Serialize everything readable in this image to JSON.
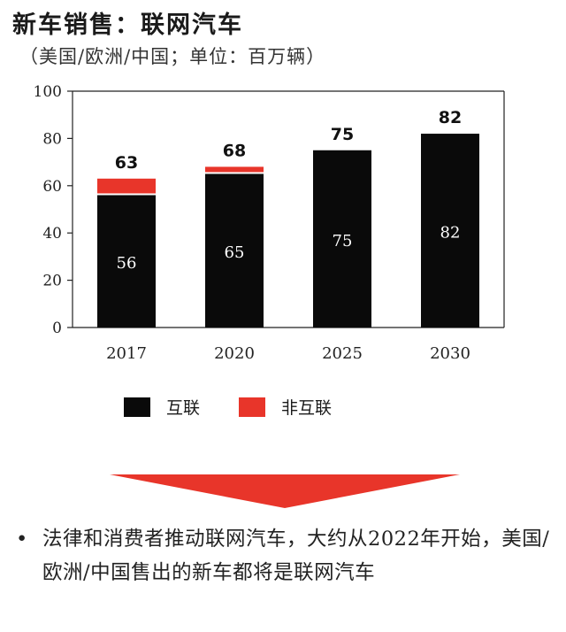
{
  "title": "新车销售：联网汽车",
  "subtitle": "（美国/欧洲/中国；单位：百万辆）",
  "colors": {
    "connected": "#0a0a0a",
    "non_connected": "#e8352a",
    "arrow": "#e8352a"
  },
  "chart_data": {
    "type": "bar",
    "stacked": true,
    "categories": [
      "2017",
      "2020",
      "2025",
      "2030"
    ],
    "series": [
      {
        "name": "互联",
        "values": [
          56,
          65,
          75,
          82
        ]
      },
      {
        "name": "非互联",
        "values": [
          7,
          3,
          0,
          0
        ]
      }
    ],
    "totals": [
      63,
      68,
      75,
      82
    ],
    "inner_labels": [
      "56",
      "65",
      "75",
      "82"
    ],
    "yticks": [
      "0",
      "20",
      "40",
      "60",
      "80",
      "100"
    ],
    "ylim": [
      0,
      100
    ],
    "legend_position": "bottom",
    "grid": false
  },
  "legend": {
    "connected_label": "互联",
    "non_connected_label": "非互联"
  },
  "note": {
    "bullet": "•",
    "text": "法律和消费者推动联网汽车，大约从2022年开始，美国/欧洲/中国售出的新车都将是联网汽车"
  }
}
